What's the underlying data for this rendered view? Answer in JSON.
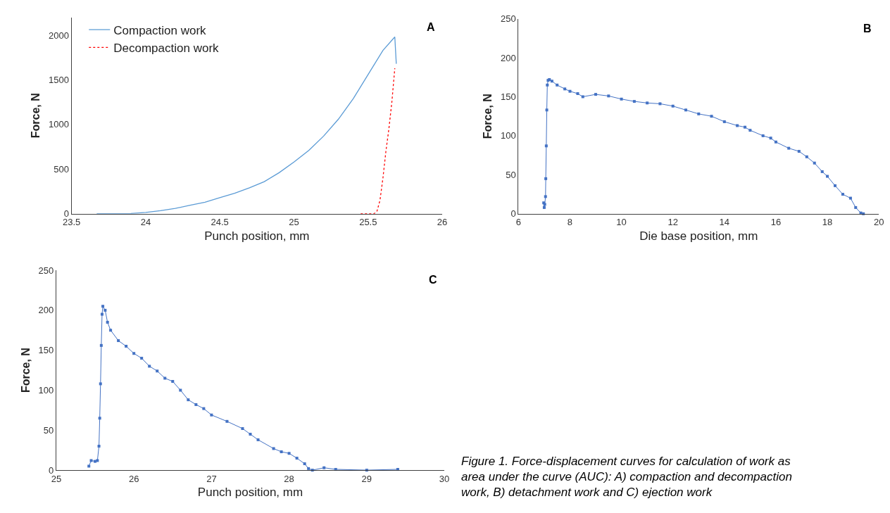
{
  "chart_data": [
    {
      "type": "line",
      "title": "A",
      "xlabel": "Punch position, mm",
      "ylabel": "Force, N",
      "xlim": [
        23.5,
        26
      ],
      "xticks": [
        23.5,
        24,
        24.5,
        25,
        25.5,
        26
      ],
      "ylim": [
        0,
        2200
      ],
      "yticks": [
        0,
        500,
        1000,
        1500,
        2000
      ],
      "legend": "top left",
      "marker": "none",
      "series": [
        {
          "name": "Compaction work",
          "color": "#5b9bd5",
          "line_style": "solid",
          "x": [
            23.67,
            23.9,
            24.0,
            24.1,
            24.2,
            24.3,
            24.4,
            24.5,
            24.6,
            24.7,
            24.8,
            24.9,
            25.0,
            25.1,
            25.2,
            25.3,
            25.4,
            25.5,
            25.6,
            25.68,
            25.69
          ],
          "values": [
            0,
            3,
            15,
            35,
            60,
            95,
            130,
            180,
            230,
            290,
            360,
            460,
            580,
            710,
            870,
            1060,
            1290,
            1560,
            1830,
            1980,
            1680
          ]
        },
        {
          "name": "Decompaction work",
          "color": "#ff0000",
          "line_style": "dotted",
          "x": [
            25.45,
            25.54,
            25.56,
            25.58,
            25.6,
            25.62,
            25.64,
            25.66,
            25.68
          ],
          "values": [
            0,
            0,
            30,
            150,
            400,
            700,
            950,
            1250,
            1630
          ]
        }
      ]
    },
    {
      "type": "line",
      "title": "B",
      "xlabel": "Die base position, mm",
      "ylabel": "Force, N",
      "xlim": [
        6,
        20
      ],
      "xticks": [
        6,
        8,
        10,
        12,
        14,
        16,
        18,
        20
      ],
      "ylim": [
        0,
        250
      ],
      "yticks": [
        0,
        50,
        100,
        150,
        200,
        250
      ],
      "legend": false,
      "marker": "square",
      "series": [
        {
          "color": "#4472c4",
          "x": [
            6.98,
            7.0,
            7.02,
            7.05,
            7.06,
            7.08,
            7.1,
            7.12,
            7.15,
            7.2,
            7.3,
            7.5,
            7.8,
            8.0,
            8.3,
            8.5,
            9.0,
            9.5,
            10.0,
            10.5,
            11.0,
            11.5,
            12.0,
            12.5,
            13.0,
            13.5,
            14.0,
            14.5,
            14.8,
            15.0,
            15.5,
            15.8,
            16.0,
            16.5,
            16.9,
            17.2,
            17.5,
            17.8,
            18.0,
            18.3,
            18.6,
            18.9,
            19.1,
            19.3,
            19.4
          ],
          "values": [
            14,
            8,
            12,
            22,
            45,
            87,
            133,
            165,
            171,
            172,
            170,
            165,
            160,
            157,
            154,
            150,
            153,
            151,
            147,
            144,
            142,
            141,
            138,
            133,
            128,
            125,
            118,
            113,
            111,
            107,
            100,
            97,
            92,
            84,
            80,
            73,
            65,
            54,
            48,
            36,
            25,
            20,
            8,
            1,
            0
          ]
        }
      ]
    },
    {
      "type": "line",
      "title": "C",
      "xlabel": "Punch position, mm",
      "ylabel": "Force, N",
      "xlim": [
        25,
        30
      ],
      "xticks": [
        25,
        26,
        27,
        28,
        29,
        30
      ],
      "ylim": [
        0,
        250
      ],
      "yticks": [
        0,
        50,
        100,
        150,
        200,
        250
      ],
      "legend": false,
      "marker": "square",
      "annotations": [
        "Figure 1. Force-displacement curves for calculation of work as area under the curve (AUC): A) compaction and decompaction work, B) detachment work and C) ejection work"
      ],
      "series": [
        {
          "color": "#4472c4",
          "x": [
            25.42,
            25.45,
            25.5,
            25.53,
            25.55,
            25.56,
            25.57,
            25.58,
            25.59,
            25.6,
            25.63,
            25.66,
            25.7,
            25.8,
            25.9,
            26.0,
            26.1,
            26.2,
            26.3,
            26.4,
            26.5,
            26.6,
            26.7,
            26.8,
            26.9,
            27.0,
            27.2,
            27.4,
            27.5,
            27.6,
            27.8,
            27.9,
            28.0,
            28.1,
            28.2,
            28.25,
            28.3,
            28.45,
            28.6,
            29.0,
            29.4
          ],
          "values": [
            5,
            12,
            11,
            12,
            30,
            65,
            108,
            156,
            195,
            205,
            200,
            185,
            175,
            162,
            155,
            146,
            140,
            130,
            124,
            115,
            111,
            100,
            88,
            82,
            77,
            69,
            61,
            52,
            45,
            38,
            27,
            23,
            21,
            15,
            8,
            2,
            0,
            3,
            1,
            0,
            1
          ]
        }
      ]
    }
  ]
}
